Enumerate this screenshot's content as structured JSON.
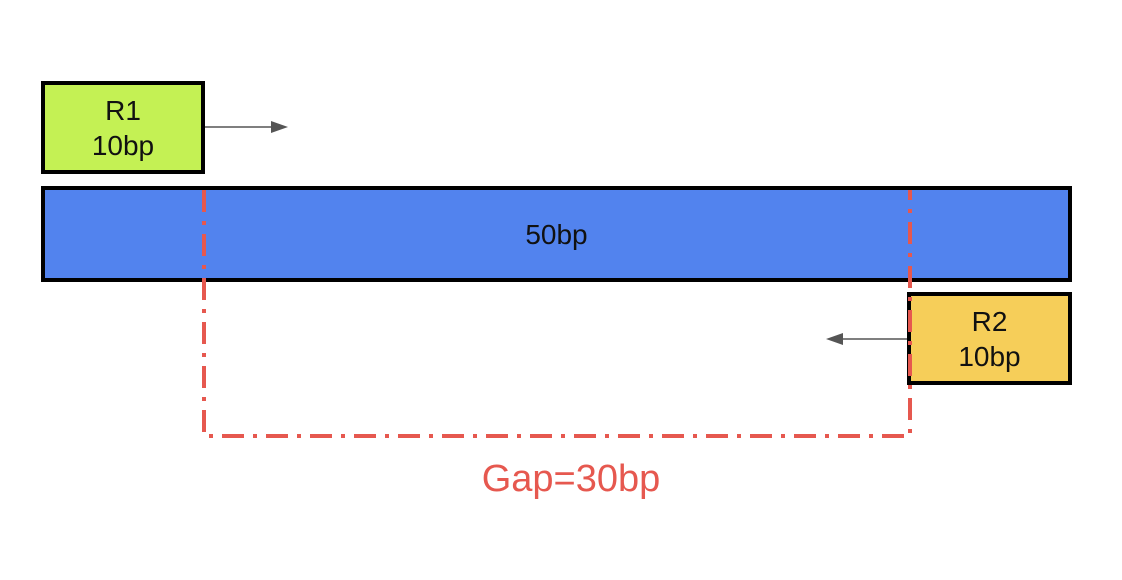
{
  "colors": {
    "fragment": "#5283EE",
    "read1": "#C4F154",
    "read2": "#F6CE59",
    "gap": "#E6584F",
    "arrow": "#555555"
  },
  "read1": {
    "name": "R1",
    "length": "10bp"
  },
  "read2": {
    "name": "R2",
    "length": "10bp"
  },
  "fragment": {
    "length": "50bp"
  },
  "gap": {
    "label": "Gap=30bp"
  }
}
